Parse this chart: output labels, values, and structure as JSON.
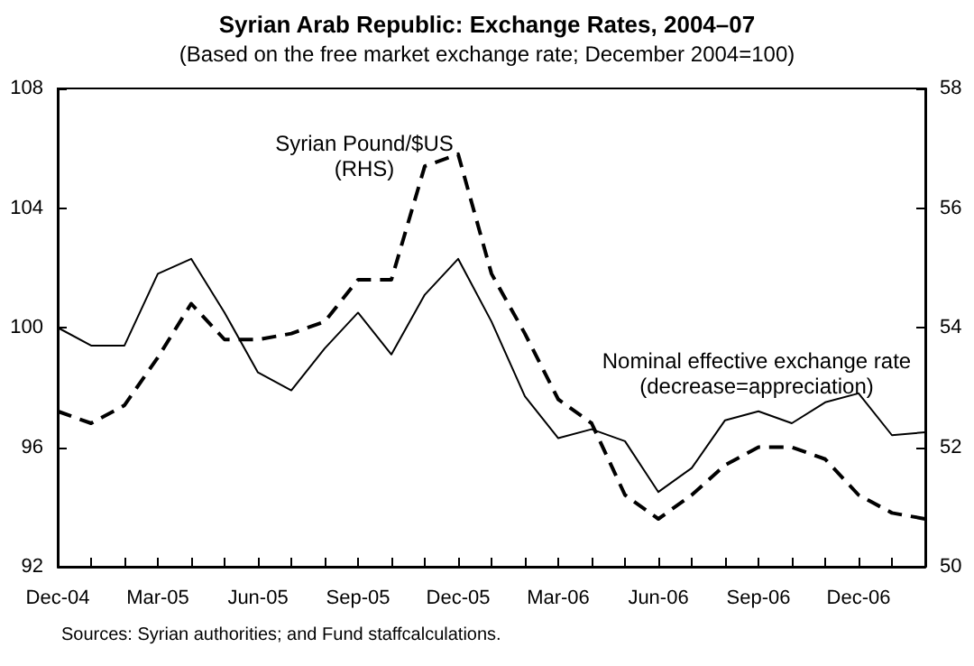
{
  "chart_data": {
    "type": "line",
    "title": "Syrian Arab Republic: Exchange Rates, 2004–07",
    "subtitle": "(Based on the free market exchange rate; December 2004=100)",
    "categories": [
      "Dec-04",
      null,
      null,
      "Mar-05",
      null,
      null,
      "Jun-05",
      null,
      null,
      "Sep-05",
      null,
      null,
      "Dec-05",
      null,
      null,
      "Mar-06",
      null,
      null,
      "Jun-06",
      null,
      null,
      "Sep-06",
      null,
      null,
      "Dec-06",
      null,
      null
    ],
    "series": [
      {
        "name": "Nominal effective exchange rate\n(decrease=appreciation)",
        "color": "#000000",
        "line_style": "solid",
        "values": [
          100.0,
          99.4,
          99.4,
          101.8,
          102.3,
          100.5,
          98.5,
          97.9,
          99.3,
          100.5,
          99.1,
          101.1,
          102.3,
          100.2,
          97.7,
          96.3,
          96.6,
          96.2,
          94.5,
          95.3,
          96.9,
          97.2,
          96.8,
          97.5,
          97.8,
          96.4,
          96.5
        ]
      },
      {
        "name": "Syrian Pound/$US\n(RHS)",
        "color": "#000000",
        "line_style": "dashed",
        "axis": "y2",
        "values": [
          52.6,
          52.4,
          52.7,
          53.5,
          54.4,
          53.8,
          53.8,
          53.9,
          54.1,
          54.8,
          54.8,
          56.7,
          56.9,
          54.9,
          53.9,
          52.8,
          52.4,
          51.2,
          50.8,
          51.2,
          51.7,
          52.0,
          52.0,
          51.8,
          51.2,
          50.9,
          50.8
        ]
      }
    ],
    "ylim": [
      92,
      108
    ],
    "yticks": [
      92,
      96,
      100,
      104,
      108
    ],
    "y2lim": [
      50,
      58
    ],
    "y2ticks": [
      50,
      52,
      54,
      56,
      58
    ],
    "grid": false,
    "legend": false,
    "marker": "none",
    "annotations": [
      "Sources: Syrian authorities; and Fund staffcalculations."
    ]
  }
}
